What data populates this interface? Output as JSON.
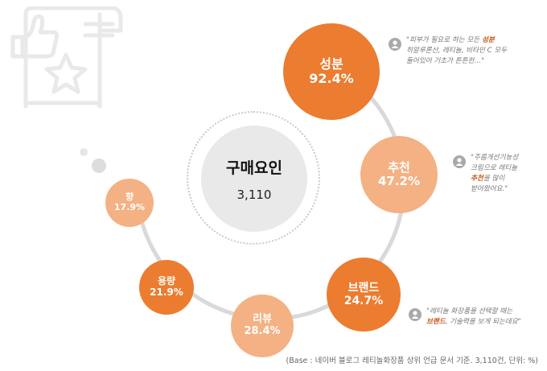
{
  "center": {
    "title": "구매요인",
    "value": "3,110"
  },
  "factors": [
    {
      "label": "성분",
      "value": "92.4%"
    },
    {
      "label": "추천",
      "value": "47.2%"
    },
    {
      "label": "브랜드",
      "value": "24.7%"
    },
    {
      "label": "리뷰",
      "value": "28.4%"
    },
    {
      "label": "용량",
      "value": "21.9%"
    },
    {
      "label": "향",
      "value": "17.9%"
    }
  ],
  "quotes": {
    "q1": {
      "line1_prefix": "\"피부가 필요로 하는 모든 ",
      "line1_highlight": "성분",
      "line2": "히알루론산, 레티놀, 비타민 C 모두",
      "line3": "들어있어 기초가 튼튼한…\""
    },
    "q2": {
      "line1": "\"주름개선기능성",
      "line2": "크림으로 레티놀",
      "line3_highlight": "추천",
      "line3_suffix": "을 많이",
      "line4": "받아왔어요.\""
    },
    "q3": {
      "line1": "\"레티놀 화장품을 선택할 때는",
      "line2_highlight": "브랜드",
      "line2_suffix": ", 기술력을 보게 되는데요\""
    }
  },
  "base_note": "(Base : 네이버 블로그 레티놀화장품 상위 언급 문서 기준. 3,110건, 단위: %)",
  "colors": {
    "dark_orange": "#ec7c30",
    "light_orange": "#f4b183",
    "highlight": "#c8561a",
    "ring": "#d9d9d9",
    "center_fill": "#e9e9e9"
  },
  "icons": {
    "logo": "thumbs-up-star-document-icon",
    "user": "user-icon"
  }
}
